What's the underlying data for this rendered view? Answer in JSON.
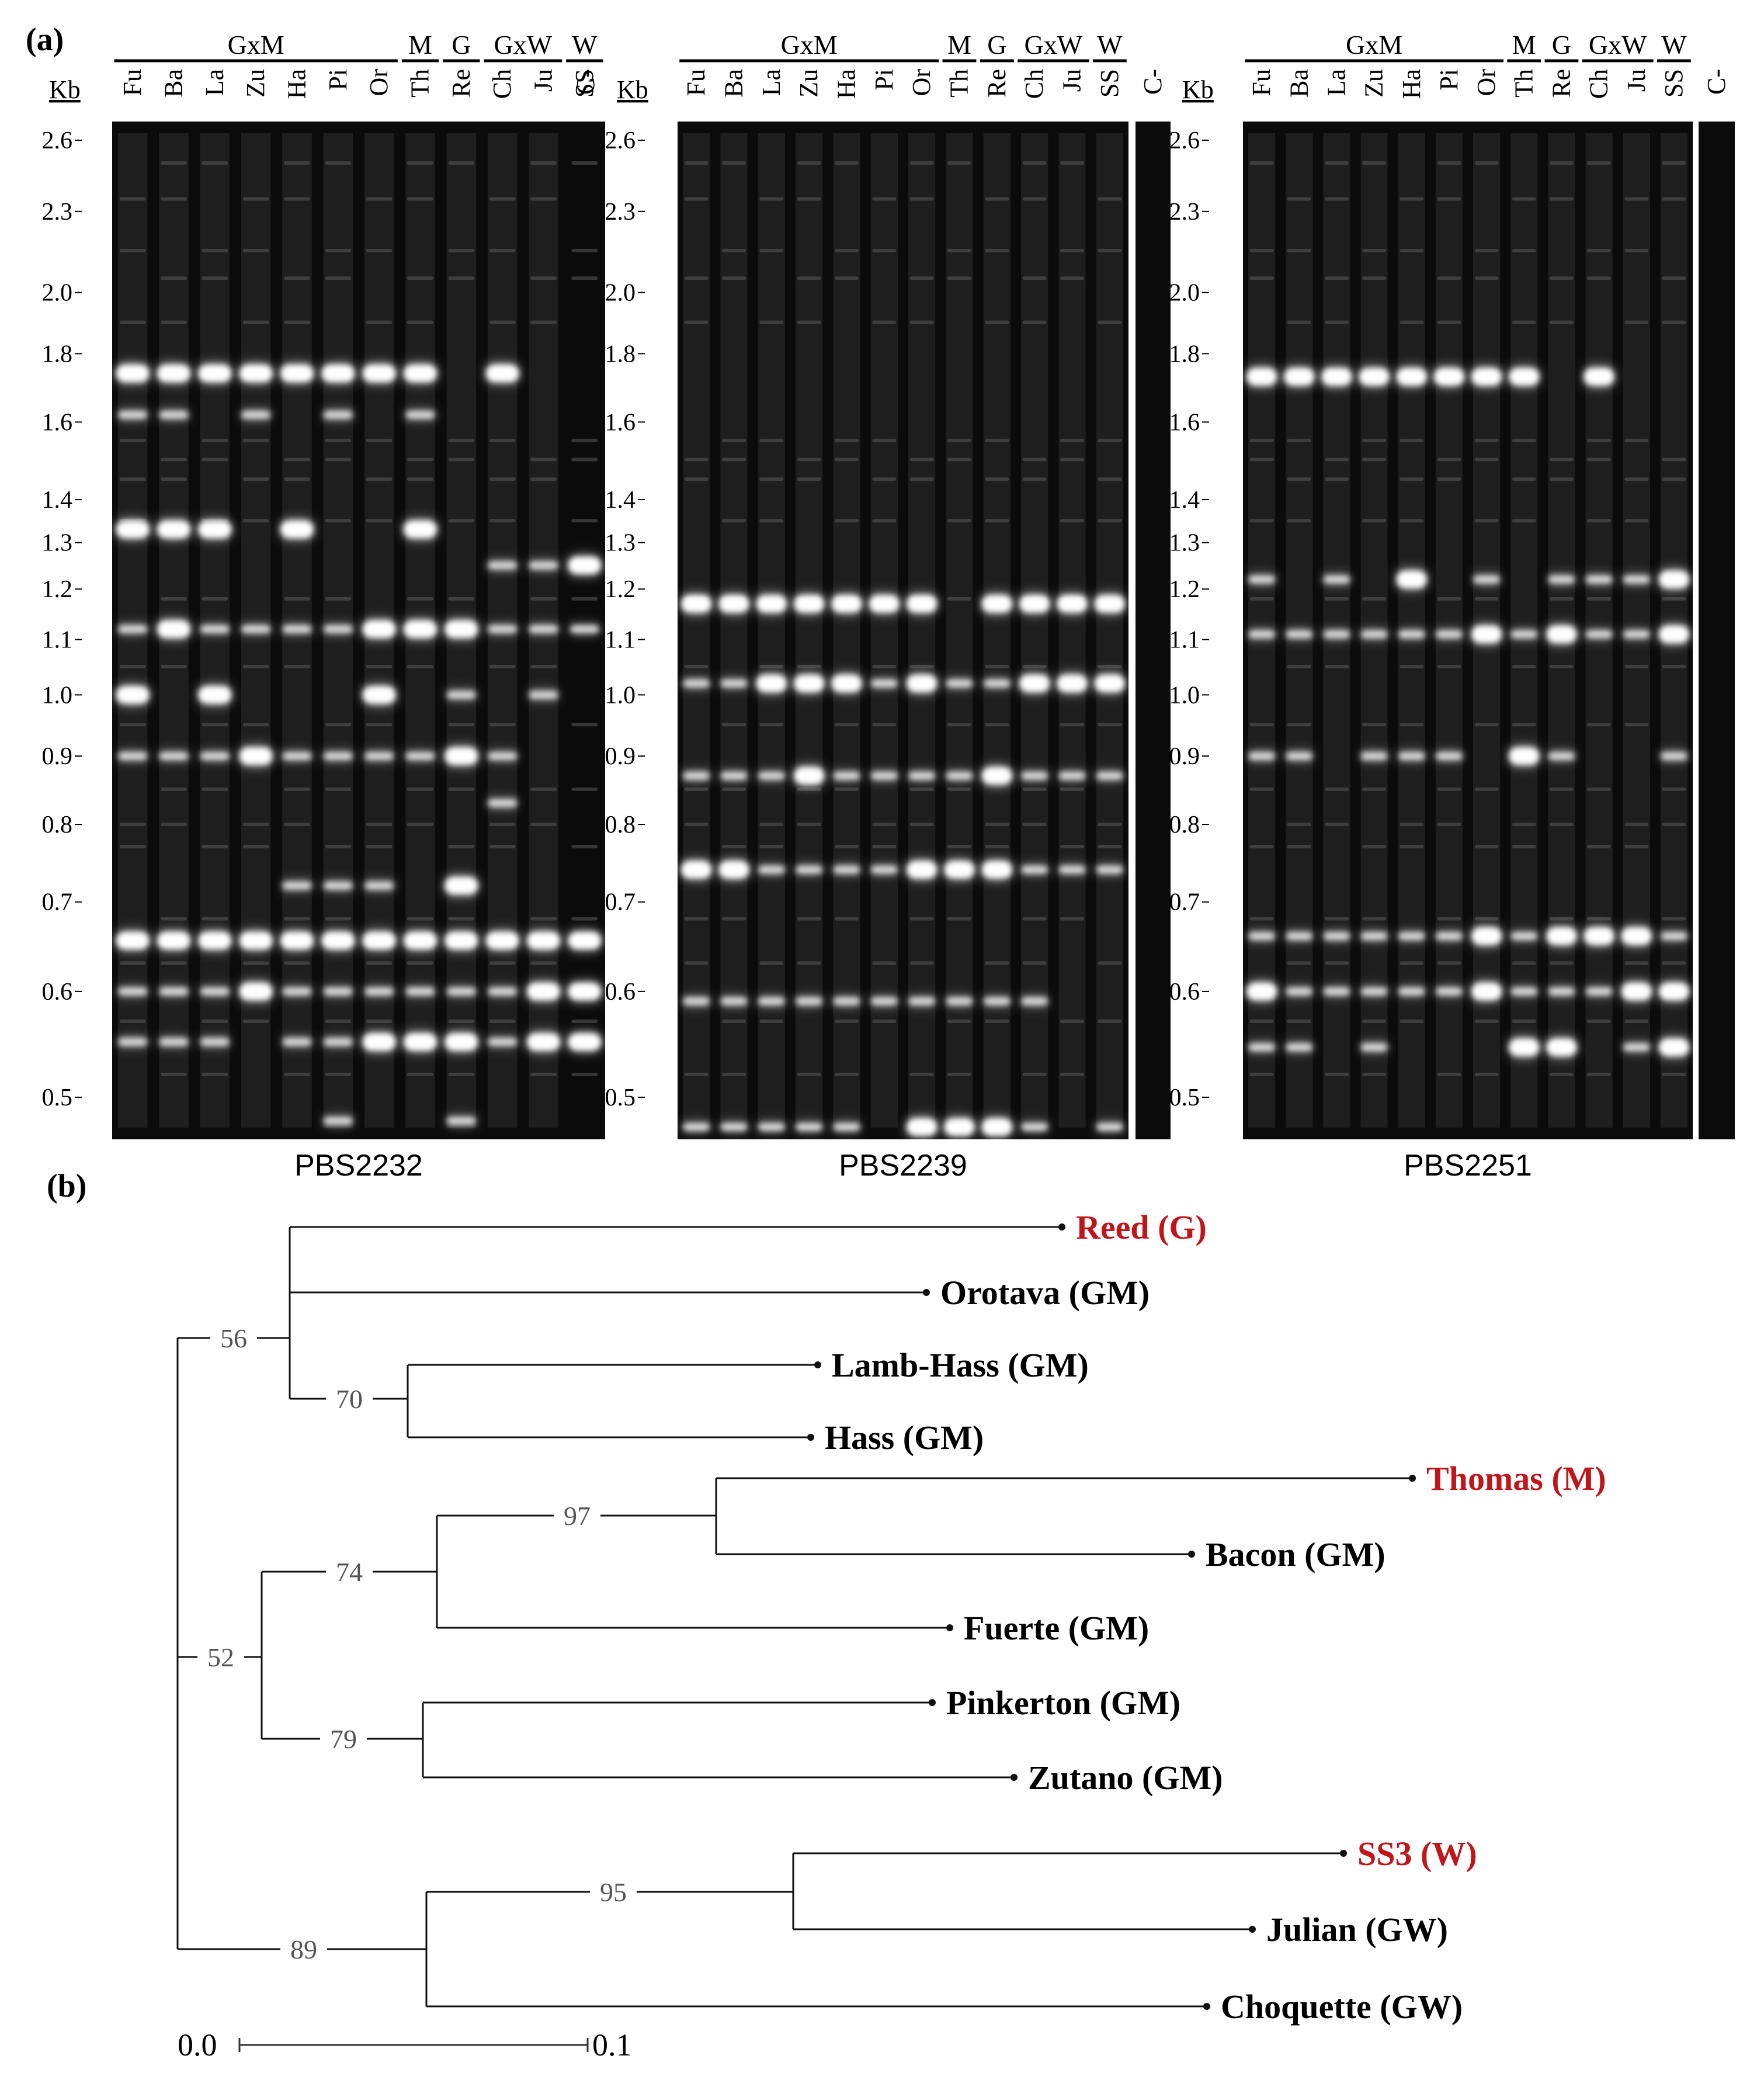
{
  "panel_a_label": "(a)",
  "panel_b_label": "(b)",
  "kb_label": "Kb",
  "group_headers": [
    "GxM",
    "M",
    "G",
    "GxW",
    "W"
  ],
  "lanes": [
    "Fu",
    "Ba",
    "La",
    "Zu",
    "Ha",
    "Pi",
    "Or",
    "Th",
    "Re",
    "Ch",
    "Ju",
    "SS"
  ],
  "control_label": "C-",
  "sizes": [
    "2.6",
    "2.3",
    "2.0",
    "1.8",
    "1.6",
    "1.4",
    "1.3",
    "1.2",
    "1.1",
    "1.0",
    "0.9",
    "0.8",
    "0.7",
    "0.6",
    "0.5"
  ],
  "gels": [
    {
      "name": "PBS2232",
      "bands": [
        {
          "kb": 1.74,
          "lanes": [
            0,
            1,
            2,
            3,
            4,
            5,
            6,
            7,
            9
          ],
          "strong": [
            0,
            1,
            2,
            3,
            4,
            5,
            6,
            7,
            9
          ]
        },
        {
          "kb": 1.62,
          "lanes": [
            0,
            1,
            3,
            5,
            7
          ]
        },
        {
          "kb": 1.33,
          "lanes": [
            0,
            1,
            2,
            4,
            7
          ],
          "strong": [
            0,
            1,
            2,
            4,
            7
          ]
        },
        {
          "kb": 1.25,
          "lanes": [
            9,
            10,
            11
          ],
          "strong": [
            11
          ]
        },
        {
          "kb": 1.12,
          "lanes": [
            0,
            1,
            2,
            3,
            4,
            5,
            6,
            7,
            8,
            9,
            10,
            11
          ],
          "strong": [
            1,
            6,
            7,
            8
          ]
        },
        {
          "kb": 1.0,
          "lanes": [
            0,
            2,
            6,
            8,
            10
          ],
          "strong": [
            0,
            2,
            6
          ]
        },
        {
          "kb": 0.9,
          "lanes": [
            0,
            1,
            2,
            3,
            4,
            5,
            6,
            7,
            8,
            9
          ],
          "strong": [
            3,
            8
          ]
        },
        {
          "kb": 0.83,
          "lanes": [
            9
          ]
        },
        {
          "kb": 0.72,
          "lanes": [
            4,
            5,
            6,
            8
          ],
          "strong": [
            8
          ]
        },
        {
          "kb": 0.655,
          "lanes": [
            0,
            1,
            2,
            3,
            4,
            5,
            6,
            7,
            8,
            9,
            10,
            11
          ],
          "strong": [
            0,
            1,
            2,
            3,
            4,
            5,
            6,
            7,
            8,
            9,
            10,
            11
          ]
        },
        {
          "kb": 0.6,
          "lanes": [
            0,
            1,
            2,
            3,
            4,
            5,
            6,
            7,
            8,
            9,
            10,
            11
          ],
          "strong": [
            3,
            10,
            11
          ]
        },
        {
          "kb": 0.55,
          "lanes": [
            0,
            1,
            2,
            4,
            5,
            6,
            7,
            8,
            9,
            10,
            11
          ],
          "strong": [
            6,
            7,
            8,
            10,
            11
          ]
        },
        {
          "kb": 0.48,
          "lanes": [
            5,
            8
          ]
        }
      ]
    },
    {
      "name": "PBS2239",
      "bands": [
        {
          "kb": 1.17,
          "lanes": [
            0,
            1,
            2,
            3,
            4,
            5,
            6,
            8,
            9,
            10,
            11
          ],
          "strong": [
            0,
            1,
            2,
            3,
            4,
            5,
            6,
            8,
            9,
            10,
            11
          ]
        },
        {
          "kb": 1.02,
          "lanes": [
            0,
            1,
            2,
            3,
            4,
            5,
            6,
            7,
            8,
            9,
            10,
            11
          ],
          "strong": [
            2,
            3,
            4,
            6,
            9,
            10,
            11
          ]
        },
        {
          "kb": 0.87,
          "lanes": [
            0,
            1,
            2,
            3,
            4,
            5,
            6,
            7,
            8,
            9,
            10,
            11
          ],
          "strong": [
            3,
            8
          ]
        },
        {
          "kb": 0.74,
          "lanes": [
            0,
            1,
            2,
            3,
            4,
            5,
            6,
            7,
            8,
            9,
            10,
            11
          ],
          "strong": [
            0,
            1,
            6,
            7,
            8
          ]
        },
        {
          "kb": 0.59,
          "lanes": [
            0,
            1,
            2,
            3,
            4,
            5,
            6,
            7,
            8,
            9
          ]
        },
        {
          "kb": 0.475,
          "lanes": [
            0,
            1,
            2,
            3,
            4,
            6,
            7,
            8,
            9,
            11
          ],
          "strong": [
            6,
            7,
            8
          ]
        }
      ]
    },
    {
      "name": "PBS2251",
      "bands": [
        {
          "kb": 1.73,
          "lanes": [
            0,
            1,
            2,
            3,
            4,
            5,
            6,
            7,
            9
          ],
          "strong": [
            0,
            1,
            2,
            3,
            4,
            5,
            6,
            7,
            9
          ]
        },
        {
          "kb": 1.22,
          "lanes": [
            0,
            2,
            4,
            6,
            8,
            9,
            10,
            11
          ],
          "strong": [
            4,
            11
          ]
        },
        {
          "kb": 1.11,
          "lanes": [
            0,
            1,
            2,
            3,
            4,
            5,
            6,
            7,
            8,
            9,
            10,
            11
          ],
          "strong": [
            6,
            8,
            11
          ]
        },
        {
          "kb": 0.9,
          "lanes": [
            0,
            1,
            3,
            4,
            5,
            7,
            8,
            11
          ],
          "strong": [
            7
          ]
        },
        {
          "kb": 0.66,
          "lanes": [
            0,
            1,
            2,
            3,
            4,
            5,
            6,
            7,
            8,
            9,
            10,
            11
          ],
          "strong": [
            6,
            8,
            9,
            10
          ]
        },
        {
          "kb": 0.6,
          "lanes": [
            0,
            1,
            2,
            3,
            4,
            5,
            6,
            7,
            8,
            9,
            10,
            11
          ],
          "strong": [
            0,
            6,
            10,
            11
          ]
        },
        {
          "kb": 0.545,
          "lanes": [
            0,
            1,
            3,
            7,
            8,
            10,
            11
          ],
          "strong": [
            7,
            8,
            11
          ]
        }
      ]
    }
  ],
  "dendrogram": {
    "leaves": [
      {
        "label": "Reed (G)",
        "color": "#c0161b"
      },
      {
        "label": "Orotava (GM)",
        "color": "#000000"
      },
      {
        "label": "Lamb-Hass (GM)",
        "color": "#000000"
      },
      {
        "label": "Hass (GM)",
        "color": "#000000"
      },
      {
        "label": "Thomas (M)",
        "color": "#c0161b"
      },
      {
        "label": "Bacon (GM)",
        "color": "#000000"
      },
      {
        "label": "Fuerte (GM)",
        "color": "#000000"
      },
      {
        "label": "Pinkerton (GM)",
        "color": "#000000"
      },
      {
        "label": "Zutano (GM)",
        "color": "#000000"
      },
      {
        "label": "SS3 (W)",
        "color": "#c0161b"
      },
      {
        "label": "Julian (GW)",
        "color": "#000000"
      },
      {
        "label": "Choquette (GW)",
        "color": "#000000"
      }
    ],
    "bootstrap": [
      "56",
      "70",
      "97",
      "74",
      "52",
      "79",
      "95",
      "89"
    ],
    "scale": {
      "start": "0.0",
      "end": "0.1"
    }
  }
}
